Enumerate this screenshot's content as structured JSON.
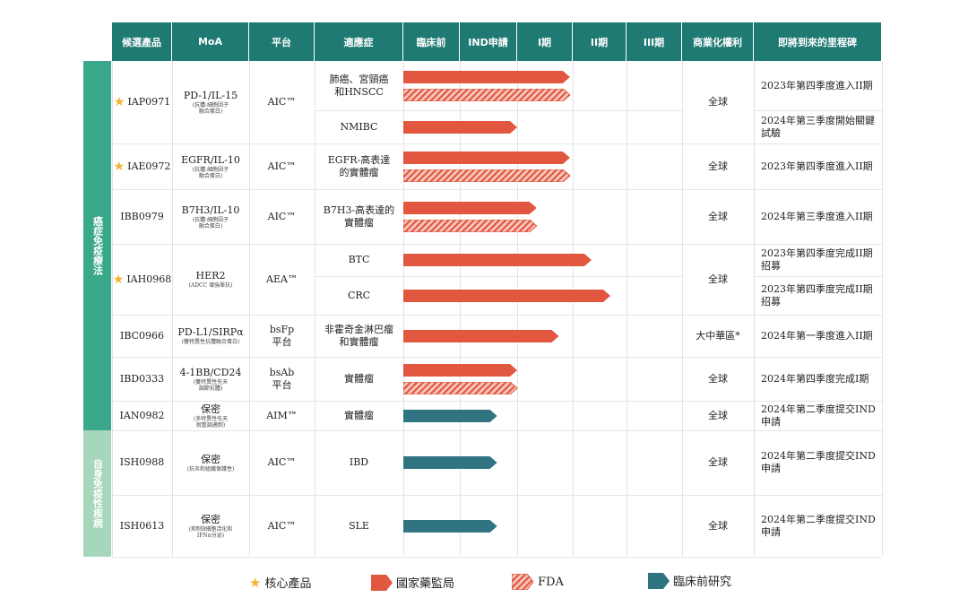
{
  "colors": {
    "header": "#1f7a73",
    "cat1": "#3aa98b",
    "cat2": "#a6d6bb",
    "nmpa": "#e2573f",
    "preclinical": "#2f7480",
    "star": "#f2b233"
  },
  "headers": [
    "候選產品",
    "MoA",
    "平台",
    "適應症",
    "臨床前",
    "IND申請",
    "I期",
    "II期",
    "III期",
    "商業化權利",
    "即將到來的里程碑"
  ],
  "categories": [
    "癌症免疫療法",
    "自身免疫性疾病"
  ],
  "rows": [
    {
      "candidate": "IAP0971",
      "core": true,
      "moa": "PD-1/IL-15",
      "moa_sub": "(抗體-細胞因子\n融合蛋白)",
      "platform": "AIC™",
      "indications": [
        {
          "name": "肺癌、宮頸癌\n和HNSCC",
          "bars": [
            {
              "type": "nmpa",
              "stage": 2.95
            },
            {
              "type": "fda",
              "stage": 2.95
            }
          ]
        },
        {
          "name": "NMIBC",
          "bars": [
            {
              "type": "nmpa",
              "stage": 2.0
            }
          ]
        }
      ],
      "rights": "全球",
      "milestones": [
        "2023年第四季度進入II期",
        "2024年第三季度開始關鍵\n試驗"
      ]
    },
    {
      "candidate": "IAE0972",
      "core": true,
      "moa": "EGFR/IL-10",
      "moa_sub": "(抗體-細胞因子\n融合蛋白)",
      "platform": "AIC™",
      "indications": [
        {
          "name": "EGFR-高表達\n的實體瘤",
          "bars": [
            {
              "type": "nmpa",
              "stage": 2.95
            },
            {
              "type": "fda",
              "stage": 2.95
            }
          ]
        }
      ],
      "rights": "全球",
      "milestones": [
        "2023年第四季度進入II期"
      ]
    },
    {
      "candidate": "IBB0979",
      "core": false,
      "moa": "B7H3/IL-10",
      "moa_sub": "(抗體-細胞因子\n融合蛋白)",
      "platform": "AIC™",
      "indications": [
        {
          "name": "B7H3-高表達的\n實體瘤",
          "bars": [
            {
              "type": "nmpa",
              "stage": 2.35
            },
            {
              "type": "fda",
              "stage": 2.35
            }
          ]
        }
      ],
      "rights": "全球",
      "milestones": [
        "2024年第三季度進入II期"
      ]
    },
    {
      "candidate": "IAH0968",
      "core": true,
      "moa": "HER2",
      "moa_sub": "(ADCC 增強單抗)",
      "platform": "AEA™",
      "indications": [
        {
          "name": "BTC",
          "bars": [
            {
              "type": "nmpa",
              "stage": 3.35
            }
          ]
        },
        {
          "name": "CRC",
          "bars": [
            {
              "type": "nmpa",
              "stage": 3.7
            }
          ]
        }
      ],
      "rights": "全球",
      "milestones": [
        "2023年第四季度完成II期\n招募",
        "2023年第四季度完成II期\n招募"
      ]
    },
    {
      "candidate": "IBC0966",
      "core": false,
      "moa": "PD-L1/SIRPα",
      "moa_sub": "(雙特異性抗體融合蛋白)",
      "platform": "bsFp\n平台",
      "indications": [
        {
          "name": "非霍奇金淋巴瘤\n和實體瘤",
          "bars": [
            {
              "type": "nmpa",
              "stage": 2.75
            }
          ]
        }
      ],
      "rights": "大中華區*",
      "milestones": [
        "2024年第一季度進入II期"
      ]
    },
    {
      "candidate": "IBD0333",
      "core": false,
      "moa": "4-1BB/CD24",
      "moa_sub": "(雙特異性先天\n調節抗體)",
      "platform": "bsAb\n平台",
      "indications": [
        {
          "name": "實體瘤",
          "bars": [
            {
              "type": "nmpa",
              "stage": 2.0
            },
            {
              "type": "fda",
              "stage": 2.0
            }
          ]
        }
      ],
      "rights": "全球",
      "milestones": [
        "2024年第四季度完成I期"
      ]
    },
    {
      "candidate": "IAN0982",
      "core": false,
      "moa": "保密",
      "moa_sub": "(多特異性先天\n就整調適劑)",
      "platform": "AIM™",
      "indications": [
        {
          "name": "實體瘤",
          "bars": [
            {
              "type": "preclinical",
              "stage": 1.65
            }
          ]
        }
      ],
      "rights": "全球",
      "milestones": [
        "2024年第二季度提交IND\n申請"
      ]
    },
    {
      "candidate": "ISH0988",
      "core": false,
      "moa": "保密",
      "moa_sub": "(抗炎和組織保護性)",
      "platform": "AIC™",
      "indications": [
        {
          "name": "IBD",
          "bars": [
            {
              "type": "preclinical",
              "stage": 1.65
            }
          ]
        }
      ],
      "rights": "全球",
      "milestones": [
        "2024年第二季度提交IND\n申請"
      ]
    },
    {
      "candidate": "ISH0613",
      "core": false,
      "moa": "保密",
      "moa_sub": "(抑制B細胞活化和\nIFNα分泌)",
      "platform": "AIC™",
      "indications": [
        {
          "name": "SLE",
          "bars": [
            {
              "type": "preclinical",
              "stage": 1.65
            }
          ]
        }
      ],
      "rights": "全球",
      "milestones": [
        "2024年第二季度提交IND\n申請"
      ]
    }
  ],
  "legend": {
    "core": "核心產品",
    "nmpa": "國家藥監局",
    "fda": "FDA",
    "preclinical": "臨床前研究"
  }
}
